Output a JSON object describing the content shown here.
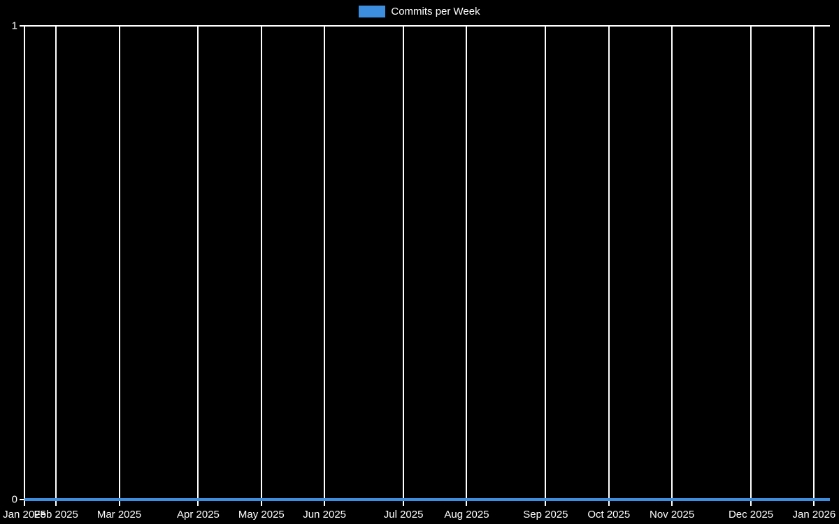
{
  "chart_data": {
    "type": "line",
    "title": "",
    "xlabel": "",
    "ylabel": "",
    "ylim": [
      0,
      1
    ],
    "grid": "vertical-at-month-starts, horizontal-at-0-and-1",
    "background_color": "#000000",
    "text_color": "#ffffff",
    "gridline_color": "#ffffff",
    "legend": {
      "position": "top-center",
      "label": "Commits per Week",
      "swatch_color": "#3E8EE0"
    },
    "weeks_total": 52,
    "x_ticks": [
      {
        "label": "Jan 2025",
        "week_index": 0
      },
      {
        "label": "Feb 2025",
        "week_index": 2
      },
      {
        "label": "Mar 2025",
        "week_index": 6
      },
      {
        "label": "Apr 2025",
        "week_index": 11
      },
      {
        "label": "May 2025",
        "week_index": 15
      },
      {
        "label": "Jun 2025",
        "week_index": 19
      },
      {
        "label": "Jul 2025",
        "week_index": 24
      },
      {
        "label": "Aug 2025",
        "week_index": 28
      },
      {
        "label": "Sep 2025",
        "week_index": 33
      },
      {
        "label": "Oct 2025",
        "week_index": 37
      },
      {
        "label": "Nov 2025",
        "week_index": 41
      },
      {
        "label": "Dec 2025",
        "week_index": 46
      },
      {
        "label": "Jan 2026",
        "week_index": 50
      }
    ],
    "y_ticks": [
      {
        "label": "1",
        "value": 1
      },
      {
        "label": "0",
        "value": 0
      }
    ],
    "series": [
      {
        "name": "Commits per Week",
        "color": "#3E8EE0",
        "values": [
          0,
          0,
          0,
          0,
          0,
          0,
          0,
          0,
          0,
          0,
          0,
          0,
          0,
          0,
          0,
          0,
          0,
          0,
          0,
          0,
          0,
          0,
          0,
          0,
          0,
          0,
          0,
          0,
          0,
          0,
          0,
          0,
          0,
          0,
          0,
          0,
          0,
          0,
          0,
          0,
          0,
          0,
          0,
          0,
          0,
          0,
          0,
          0,
          0,
          0,
          0,
          0
        ]
      }
    ]
  }
}
